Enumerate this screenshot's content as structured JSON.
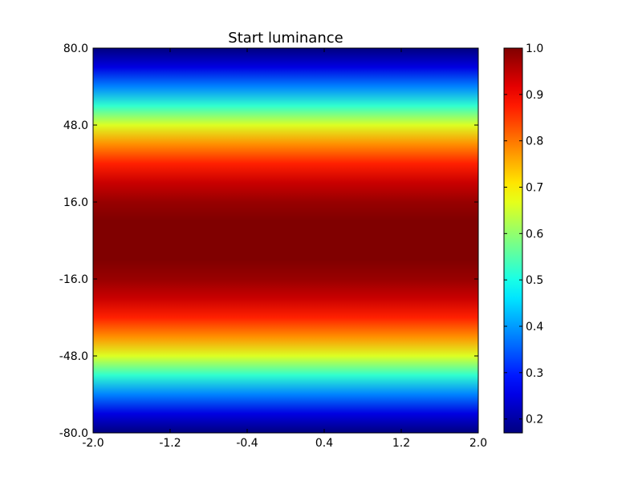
{
  "chart_data": {
    "type": "heatmap",
    "title": "Start luminance",
    "xlabel": "",
    "ylabel": "",
    "x_ticks": [
      "-2.0",
      "-1.2",
      "-0.4",
      "0.4",
      "1.2",
      "2.0"
    ],
    "y_ticks": [
      "80.0",
      "48.0",
      "16.0",
      "-16.0",
      "-48.0",
      "-80.0"
    ],
    "xlim": [
      -2.0,
      2.0
    ],
    "ylim": [
      -80.0,
      80.0
    ],
    "colormap": "jet",
    "colorbar": {
      "range": [
        0.17,
        1.0
      ],
      "ticks": [
        "1.0",
        "0.9",
        "0.8",
        "0.7",
        "0.6",
        "0.5",
        "0.4",
        "0.3",
        "0.2"
      ]
    },
    "profile": {
      "description_axis": "y",
      "y": [
        80,
        72,
        64,
        56,
        48,
        40,
        32,
        24,
        16,
        8,
        0,
        -8,
        -16,
        -24,
        -32,
        -40,
        -48,
        -56,
        -64,
        -72,
        -80
      ],
      "values": [
        0.17,
        0.25,
        0.38,
        0.52,
        0.66,
        0.78,
        0.87,
        0.94,
        0.98,
        1.0,
        1.0,
        1.0,
        0.98,
        0.94,
        0.87,
        0.78,
        0.66,
        0.52,
        0.38,
        0.25,
        0.17
      ]
    },
    "grid": false,
    "legend": "none"
  }
}
